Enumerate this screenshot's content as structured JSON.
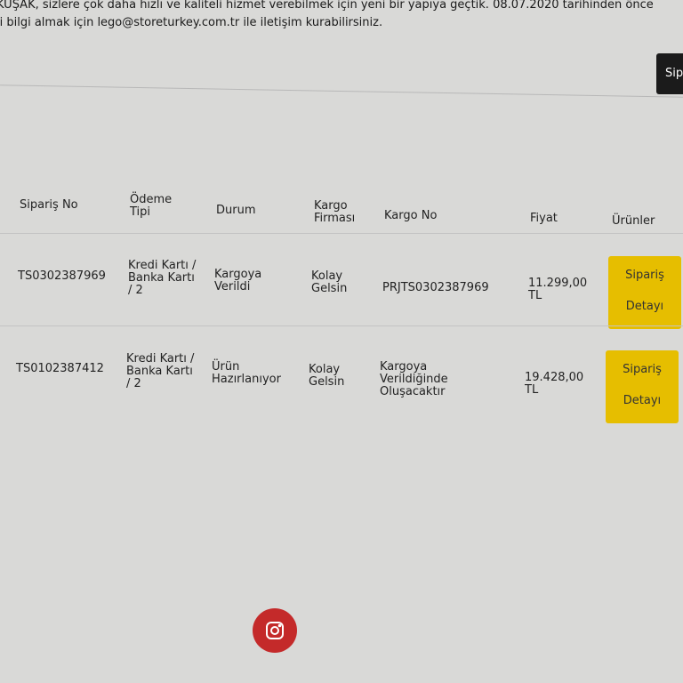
{
  "notice": {
    "line1": "KUŞAK, sizlere çok daha hızlı ve kaliteli hizmet verebilmek için yeni bir yapıya geçtik. 08.07.2020 tarihinden önce",
    "line2": "li bilgi almak için lego@storeturkey.com.tr ile iletişim kurabilirsiniz."
  },
  "top_button": "Sip",
  "headers": [
    "Sipariş No",
    "Ödeme Tipi",
    "Durum",
    "Kargo Firması",
    "Kargo No",
    "Fiyat",
    "Ürünler"
  ],
  "orders": [
    {
      "no": "TS0302387969",
      "payment": "Kredi Kartı / Banka Kartı / 2",
      "status": "Kargoya Verildi",
      "carrier": "Kolay Gelsin",
      "tracking": "PRJTS0302387969",
      "price": "11.299,00 TL",
      "btn1": "Sipariş",
      "btn2": "Detayı"
    },
    {
      "no": "TS0102387412",
      "payment": "Kredi Kartı / Banka Kartı / 2",
      "status": "Ürün Hazırlanıyor",
      "carrier": "Kolay Gelsin",
      "tracking": "Kargoya Verildiğinde Oluşacaktır",
      "price": "19.428,00 TL",
      "btn1": "Sipariş",
      "btn2": "Detayı"
    }
  ],
  "colors": {
    "button": "#e6be00",
    "instagram": "#c42a2a"
  },
  "footer_icon": "instagram-icon"
}
